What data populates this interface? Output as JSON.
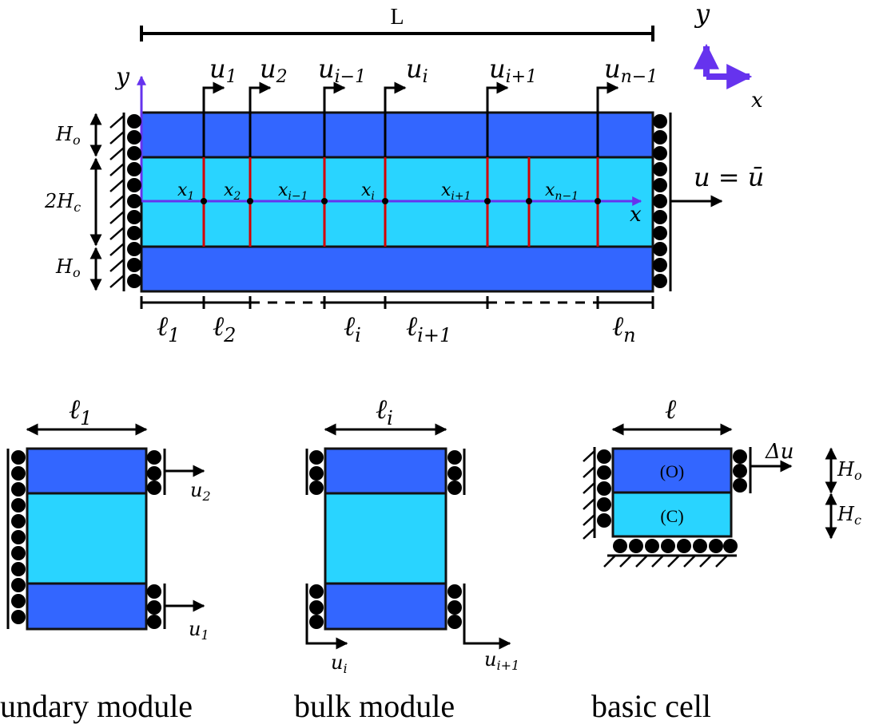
{
  "top": {
    "length_label": "L",
    "axis_y": "y",
    "axis_x": "x",
    "coord_y": "y",
    "coord_x": "x",
    "h_outer_top": "H",
    "h_outer_top_sub": "o",
    "h_core": "2H",
    "h_core_sub": "c",
    "h_outer_bottom": "H",
    "h_outer_bottom_sub": "o",
    "bc_right": "u = ū",
    "displacements": [
      {
        "base": "u",
        "sub": "1"
      },
      {
        "base": "u",
        "sub": "2"
      },
      {
        "base": "u",
        "sub": "i−1"
      },
      {
        "base": "u",
        "sub": "i"
      },
      {
        "base": "u",
        "sub": "i+1"
      },
      {
        "base": "u",
        "sub": "n−1"
      }
    ],
    "nodes": [
      {
        "base": "x",
        "sub": "1"
      },
      {
        "base": "x",
        "sub": "2"
      },
      {
        "base": "x",
        "sub": "i−1"
      },
      {
        "base": "x",
        "sub": "i"
      },
      {
        "base": "x",
        "sub": "i+1"
      },
      {
        "base": "x",
        "sub": "n−1"
      }
    ],
    "lengths": [
      {
        "base": "ℓ",
        "sub": "1"
      },
      {
        "base": "ℓ",
        "sub": "2"
      },
      {
        "base": "ℓ",
        "sub": "i"
      },
      {
        "base": "ℓ",
        "sub": "i+1"
      },
      {
        "base": "ℓ",
        "sub": "n"
      }
    ]
  },
  "boundary_module": {
    "caption": "undary module",
    "width_base": "ℓ",
    "width_sub": "1",
    "u_top": {
      "base": "u",
      "sub": "2"
    },
    "u_bottom": {
      "base": "u",
      "sub": "1"
    }
  },
  "bulk_module": {
    "caption": "bulk module",
    "width_base": "ℓ",
    "width_sub": "i",
    "u_left": {
      "base": "u",
      "sub": "i"
    },
    "u_right": {
      "base": "u",
      "sub": "i+1"
    }
  },
  "basic_cell": {
    "caption": "basic cell",
    "width_label": "ℓ",
    "outer_label": "(O)",
    "core_label": "(C)",
    "load_label": "Δu",
    "h_outer": "H",
    "h_outer_sub": "o",
    "h_core": "H",
    "h_core_sub": "c"
  },
  "colors": {
    "outer_layer": "#3366ff",
    "core_layer": "#29d4ff",
    "internal_boundaries": "#d40000",
    "axes": "#6633ee"
  }
}
